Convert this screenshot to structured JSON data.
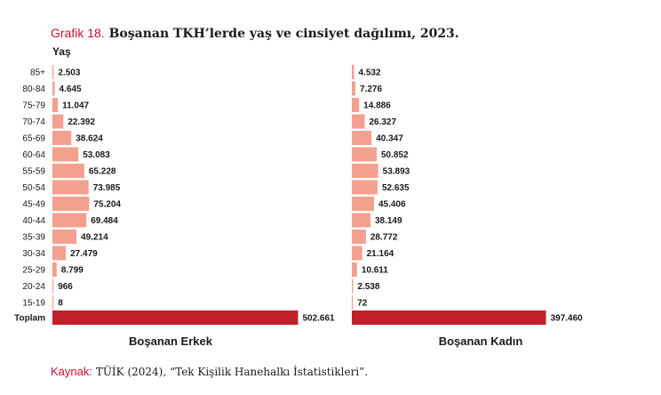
{
  "figure": {
    "label": "Grafik 18.",
    "title": "Boşanan TKH’lerde yaş ve cinsiyet dağılımı, 2023."
  },
  "chart_data": {
    "type": "bar",
    "orientation": "horizontal",
    "axis_title": "Yaş",
    "categories": [
      "85+",
      "80-84",
      "75-79",
      "70-74",
      "65-69",
      "60-64",
      "55-59",
      "50-54",
      "45-49",
      "40-44",
      "35-39",
      "30-34",
      "25-29",
      "20-24",
      "15-19"
    ],
    "total_label": "Toplam",
    "series": [
      {
        "name": "Boşanan Erkek",
        "values": [
          2503,
          4645,
          11047,
          22392,
          38624,
          53083,
          65228,
          73985,
          75204,
          69484,
          49214,
          27479,
          8799,
          966,
          8
        ],
        "value_labels": [
          "2.503",
          "4.645",
          "11.047",
          "22.392",
          "38.624",
          "53.083",
          "65.228",
          "73.985",
          "75.204",
          "69.484",
          "49.214",
          "27.479",
          "8.799",
          "966",
          "8"
        ],
        "total": 502661,
        "total_label": "502.661"
      },
      {
        "name": "Boşanan Kadın",
        "values": [
          4532,
          7276,
          14886,
          26327,
          40347,
          50852,
          53893,
          52635,
          45406,
          38149,
          28772,
          21164,
          10611,
          2538,
          72
        ],
        "value_labels": [
          "4.532",
          "7.276",
          "14.886",
          "26.327",
          "40.347",
          "50.852",
          "53.893",
          "52.635",
          "45.406",
          "38.149",
          "28.772",
          "21.164",
          "10.611",
          "2.538",
          "72"
        ],
        "total": 397460,
        "total_label": "397.460"
      }
    ],
    "colors": {
      "age_bar": "#f4a08f",
      "total_bar": "#c0202a",
      "label_text": "#1a1a1a"
    },
    "grid": false,
    "legend": "none"
  },
  "source": {
    "label": "Kaynak:",
    "text": "TÜİK (2024), “Tek Kişilik Hanehalkı İstatistikleri”."
  }
}
